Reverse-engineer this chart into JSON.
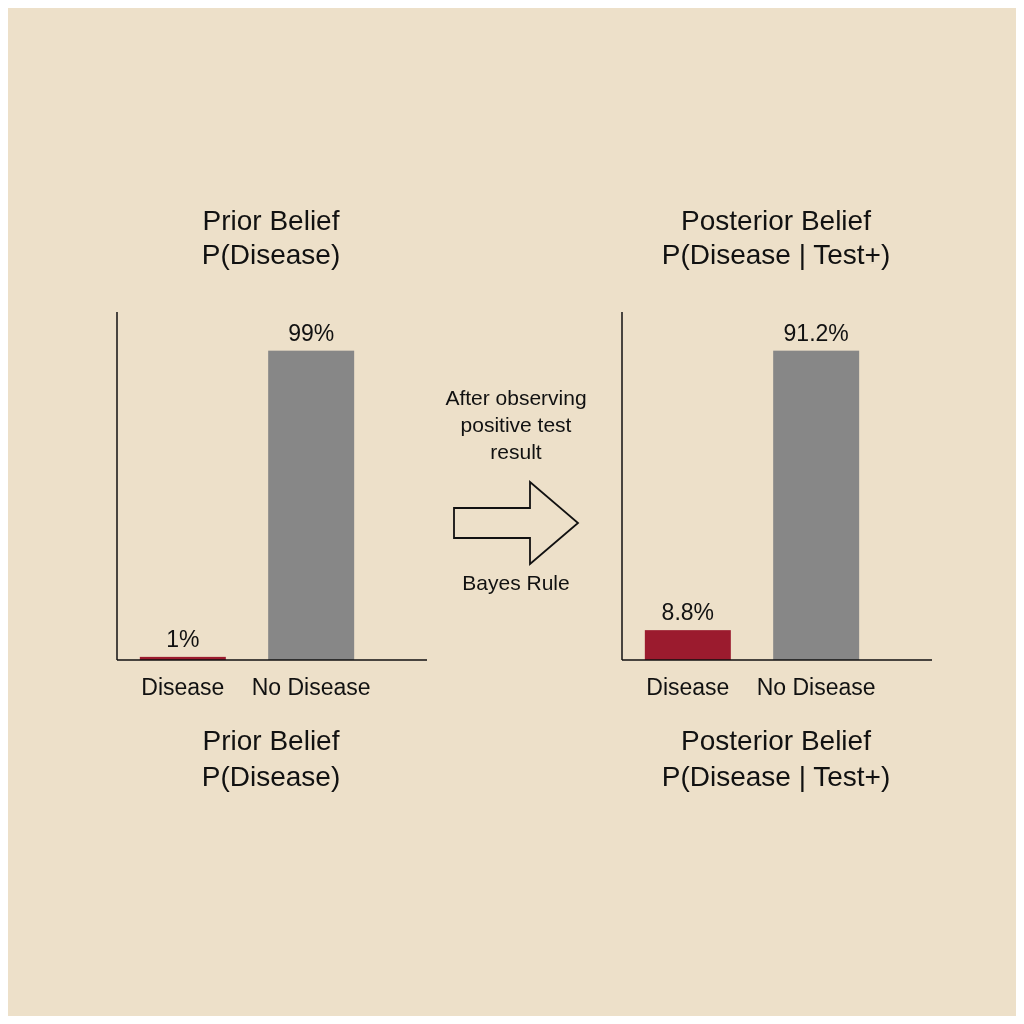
{
  "chart_data": [
    {
      "type": "bar",
      "title": "Prior Belief\nP(Disease)",
      "xlabel": "Prior Belief\nP(Disease)",
      "categories": [
        "Disease",
        "No Disease"
      ],
      "values": [
        1,
        99
      ],
      "colors": [
        "#9b1b2e",
        "#878787"
      ],
      "value_labels": [
        "1%",
        "99%"
      ],
      "annotations": [
        "After observing\npositive test\nresult",
        "Bayes Rule"
      ]
    },
    {
      "type": "bar",
      "title": "Posterior Belief\nP(Disease | Test+)",
      "xlabel": "Posterior Belief\nP(Disease | Test+)",
      "categories": [
        "Disease",
        "No Disease"
      ],
      "values": [
        8.8,
        91.2
      ],
      "colors": [
        "#9b1b2e",
        "#878787"
      ],
      "value_labels": [
        "8.8%",
        "91.2%"
      ]
    }
  ]
}
